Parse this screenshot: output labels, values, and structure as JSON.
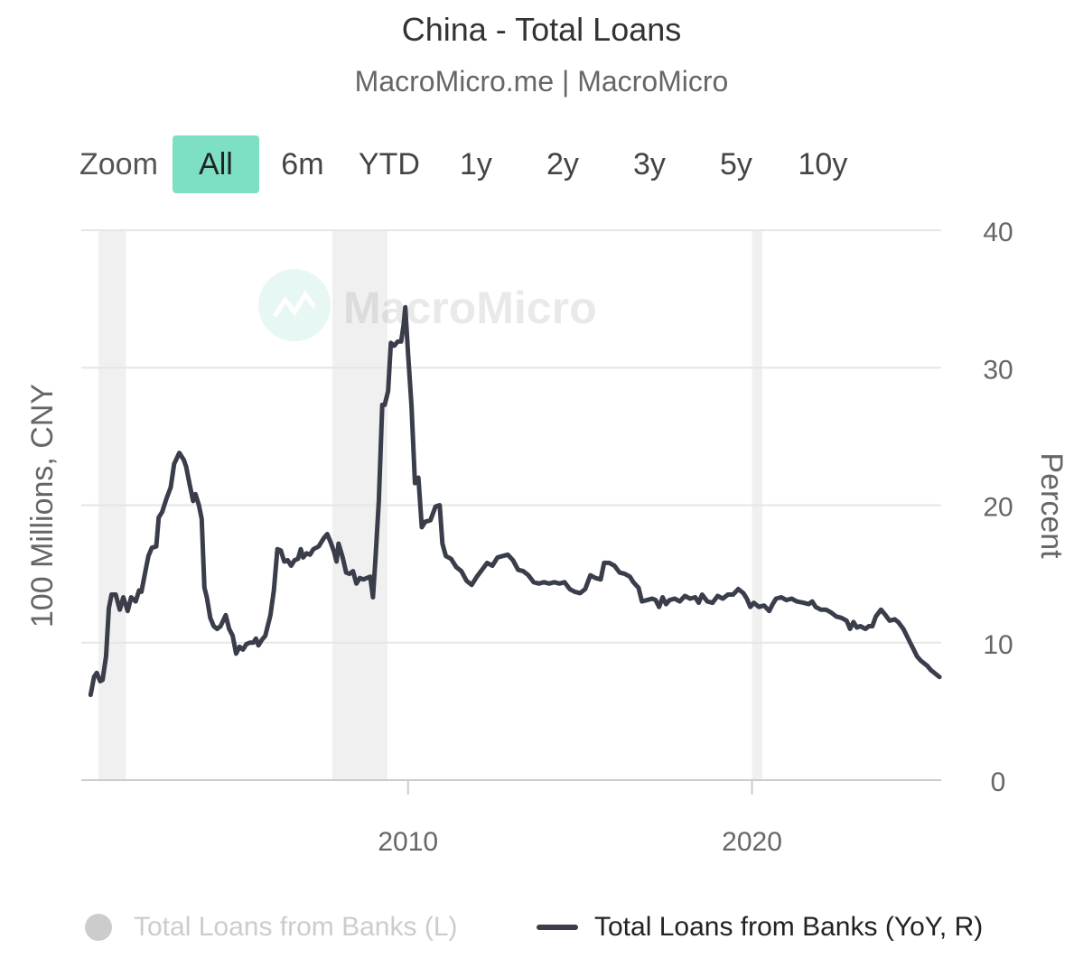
{
  "header": {
    "title": "China - Total Loans",
    "subtitle": "MacroMicro.me | MacroMicro"
  },
  "zoom": {
    "label": "Zoom",
    "buttons": [
      "All",
      "6m",
      "YTD",
      "1y",
      "2y",
      "3y",
      "5y",
      "10y"
    ],
    "active": "All"
  },
  "watermark": "MacroMicro",
  "colors": {
    "series_line": "#3a3d4a",
    "zoom_active": "#7ddfc3",
    "recession_band": "#f0f0f0",
    "grid": "#e6e6e6",
    "legend_inactive": "#cccccc"
  },
  "chart_data": {
    "type": "line",
    "title": "China - Total Loans",
    "subtitle": "MacroMicro.me | MacroMicro",
    "y_left_label": "100 Millions, CNY",
    "y_right_label": "Percent",
    "y_right_range": [
      0,
      40
    ],
    "y_right_ticks": [
      0,
      10,
      20,
      30,
      40
    ],
    "x_range": [
      2000.5,
      2025.5
    ],
    "x_ticks": [
      2010,
      2020
    ],
    "x_tick_labels": [
      "2010",
      "2020"
    ],
    "grid": true,
    "legend_position": "bottom",
    "shaded_periods": [
      [
        2001.0,
        2001.8
      ],
      [
        2007.8,
        2009.4
      ],
      [
        2020.0,
        2020.3
      ]
    ],
    "series": [
      {
        "name": "Total Loans from Banks (L)",
        "visible": false,
        "values": []
      },
      {
        "name": "Total Loans from Banks (YoY, R)",
        "visible": true,
        "points": [
          [
            2000.77,
            6.2
          ],
          [
            2000.87,
            7.5
          ],
          [
            2000.95,
            7.8
          ],
          [
            2001.05,
            7.2
          ],
          [
            2001.12,
            7.3
          ],
          [
            2001.22,
            9.0
          ],
          [
            2001.3,
            12.5
          ],
          [
            2001.38,
            13.5
          ],
          [
            2001.5,
            13.5
          ],
          [
            2001.62,
            12.4
          ],
          [
            2001.72,
            13.3
          ],
          [
            2001.85,
            12.3
          ],
          [
            2001.95,
            13.3
          ],
          [
            2002.08,
            13.0
          ],
          [
            2002.18,
            13.8
          ],
          [
            2002.25,
            13.7
          ],
          [
            2002.35,
            15.0
          ],
          [
            2002.45,
            16.3
          ],
          [
            2002.55,
            16.9
          ],
          [
            2002.68,
            17.0
          ],
          [
            2002.75,
            19.1
          ],
          [
            2002.85,
            19.5
          ],
          [
            2002.98,
            20.5
          ],
          [
            2003.1,
            21.3
          ],
          [
            2003.2,
            23.0
          ],
          [
            2003.35,
            23.8
          ],
          [
            2003.48,
            23.3
          ],
          [
            2003.55,
            22.8
          ],
          [
            2003.65,
            21.5
          ],
          [
            2003.75,
            20.3
          ],
          [
            2003.82,
            20.8
          ],
          [
            2003.92,
            20.0
          ],
          [
            2004.0,
            19.0
          ],
          [
            2004.08,
            14.0
          ],
          [
            2004.15,
            13.3
          ],
          [
            2004.25,
            11.8
          ],
          [
            2004.35,
            11.2
          ],
          [
            2004.45,
            11.0
          ],
          [
            2004.55,
            11.2
          ],
          [
            2004.7,
            12.0
          ],
          [
            2004.8,
            11.0
          ],
          [
            2004.9,
            10.5
          ],
          [
            2005.0,
            9.2
          ],
          [
            2005.1,
            9.7
          ],
          [
            2005.2,
            9.5
          ],
          [
            2005.3,
            9.9
          ],
          [
            2005.4,
            10.0
          ],
          [
            2005.5,
            10.0
          ],
          [
            2005.58,
            10.3
          ],
          [
            2005.65,
            9.8
          ],
          [
            2005.75,
            10.2
          ],
          [
            2005.85,
            10.5
          ],
          [
            2006.0,
            12.0
          ],
          [
            2006.1,
            13.8
          ],
          [
            2006.2,
            16.8
          ],
          [
            2006.3,
            16.7
          ],
          [
            2006.4,
            15.9
          ],
          [
            2006.5,
            16.0
          ],
          [
            2006.6,
            15.6
          ],
          [
            2006.7,
            16.0
          ],
          [
            2006.8,
            16.1
          ],
          [
            2006.88,
            16.8
          ],
          [
            2006.95,
            16.2
          ],
          [
            2007.05,
            16.5
          ],
          [
            2007.15,
            16.4
          ],
          [
            2007.25,
            16.8
          ],
          [
            2007.4,
            17.0
          ],
          [
            2007.55,
            17.6
          ],
          [
            2007.65,
            17.9
          ],
          [
            2007.75,
            17.3
          ],
          [
            2007.85,
            16.6
          ],
          [
            2007.92,
            15.9
          ],
          [
            2007.98,
            17.2
          ],
          [
            2008.1,
            16.2
          ],
          [
            2008.2,
            15.1
          ],
          [
            2008.3,
            15.0
          ],
          [
            2008.4,
            15.2
          ],
          [
            2008.5,
            14.3
          ],
          [
            2008.6,
            14.7
          ],
          [
            2008.7,
            14.6
          ],
          [
            2008.8,
            14.7
          ],
          [
            2008.9,
            14.8
          ],
          [
            2008.98,
            13.3
          ],
          [
            2009.05,
            16.0
          ],
          [
            2009.15,
            20.3
          ],
          [
            2009.25,
            27.3
          ],
          [
            2009.32,
            27.3
          ],
          [
            2009.42,
            28.3
          ],
          [
            2009.5,
            31.8
          ],
          [
            2009.6,
            31.6
          ],
          [
            2009.7,
            31.9
          ],
          [
            2009.8,
            31.9
          ],
          [
            2009.87,
            33.1
          ],
          [
            2009.92,
            34.4
          ],
          [
            2010.0,
            31.0
          ],
          [
            2010.1,
            27.2
          ],
          [
            2010.2,
            21.6
          ],
          [
            2010.3,
            22.0
          ],
          [
            2010.4,
            18.4
          ],
          [
            2010.5,
            18.8
          ],
          [
            2010.65,
            18.9
          ],
          [
            2010.8,
            19.9
          ],
          [
            2010.92,
            20.0
          ],
          [
            2011.0,
            17.2
          ],
          [
            2011.1,
            16.3
          ],
          [
            2011.25,
            16.1
          ],
          [
            2011.4,
            15.5
          ],
          [
            2011.55,
            15.2
          ],
          [
            2011.7,
            14.5
          ],
          [
            2011.85,
            14.2
          ],
          [
            2012.0,
            14.8
          ],
          [
            2012.15,
            15.3
          ],
          [
            2012.3,
            15.8
          ],
          [
            2012.45,
            15.6
          ],
          [
            2012.6,
            16.2
          ],
          [
            2012.75,
            16.3
          ],
          [
            2012.9,
            16.4
          ],
          [
            2013.05,
            16.0
          ],
          [
            2013.2,
            15.3
          ],
          [
            2013.35,
            15.2
          ],
          [
            2013.5,
            14.9
          ],
          [
            2013.65,
            14.4
          ],
          [
            2013.8,
            14.3
          ],
          [
            2013.95,
            14.4
          ],
          [
            2014.1,
            14.3
          ],
          [
            2014.25,
            14.4
          ],
          [
            2014.4,
            14.3
          ],
          [
            2014.55,
            14.4
          ],
          [
            2014.7,
            13.9
          ],
          [
            2014.85,
            13.7
          ],
          [
            2015.0,
            13.6
          ],
          [
            2015.15,
            13.9
          ],
          [
            2015.3,
            14.9
          ],
          [
            2015.45,
            14.7
          ],
          [
            2015.6,
            14.6
          ],
          [
            2015.7,
            15.8
          ],
          [
            2015.85,
            15.8
          ],
          [
            2016.0,
            15.6
          ],
          [
            2016.15,
            15.1
          ],
          [
            2016.3,
            15.0
          ],
          [
            2016.45,
            14.8
          ],
          [
            2016.55,
            14.4
          ],
          [
            2016.7,
            14.0
          ],
          [
            2016.8,
            13.0
          ],
          [
            2016.95,
            13.1
          ],
          [
            2017.1,
            13.2
          ],
          [
            2017.2,
            13.1
          ],
          [
            2017.3,
            12.6
          ],
          [
            2017.4,
            13.3
          ],
          [
            2017.5,
            12.8
          ],
          [
            2017.6,
            13.1
          ],
          [
            2017.75,
            13.2
          ],
          [
            2017.9,
            13.0
          ],
          [
            2018.05,
            13.4
          ],
          [
            2018.2,
            13.2
          ],
          [
            2018.35,
            13.3
          ],
          [
            2018.45,
            12.9
          ],
          [
            2018.55,
            13.5
          ],
          [
            2018.7,
            13.0
          ],
          [
            2018.85,
            12.9
          ],
          [
            2019.0,
            13.4
          ],
          [
            2019.15,
            13.2
          ],
          [
            2019.3,
            13.5
          ],
          [
            2019.45,
            13.5
          ],
          [
            2019.6,
            13.9
          ],
          [
            2019.75,
            13.6
          ],
          [
            2019.85,
            13.2
          ],
          [
            2019.95,
            12.6
          ],
          [
            2020.05,
            12.9
          ],
          [
            2020.2,
            12.6
          ],
          [
            2020.35,
            12.7
          ],
          [
            2020.5,
            12.3
          ],
          [
            2020.6,
            12.8
          ],
          [
            2020.7,
            13.2
          ],
          [
            2020.85,
            13.3
          ],
          [
            2021.0,
            13.1
          ],
          [
            2021.15,
            13.2
          ],
          [
            2021.3,
            13.0
          ],
          [
            2021.5,
            12.9
          ],
          [
            2021.65,
            12.8
          ],
          [
            2021.75,
            13.0
          ],
          [
            2021.85,
            12.6
          ],
          [
            2022.0,
            12.4
          ],
          [
            2022.15,
            12.4
          ],
          [
            2022.3,
            12.2
          ],
          [
            2022.45,
            11.9
          ],
          [
            2022.6,
            11.8
          ],
          [
            2022.75,
            11.6
          ],
          [
            2022.85,
            11.0
          ],
          [
            2022.95,
            11.5
          ],
          [
            2023.05,
            11.1
          ],
          [
            2023.15,
            11.2
          ],
          [
            2023.3,
            11.0
          ],
          [
            2023.4,
            11.2
          ],
          [
            2023.5,
            11.2
          ],
          [
            2023.6,
            11.9
          ],
          [
            2023.75,
            12.4
          ],
          [
            2023.85,
            12.1
          ],
          [
            2024.0,
            11.6
          ],
          [
            2024.15,
            11.7
          ],
          [
            2024.25,
            11.5
          ],
          [
            2024.4,
            11.0
          ],
          [
            2024.5,
            10.5
          ],
          [
            2024.6,
            10.0
          ],
          [
            2024.7,
            9.5
          ],
          [
            2024.8,
            9.0
          ],
          [
            2024.9,
            8.7
          ],
          [
            2025.0,
            8.5
          ],
          [
            2025.1,
            8.3
          ],
          [
            2025.2,
            8.0
          ],
          [
            2025.3,
            7.8
          ],
          [
            2025.45,
            7.5
          ]
        ]
      }
    ]
  }
}
